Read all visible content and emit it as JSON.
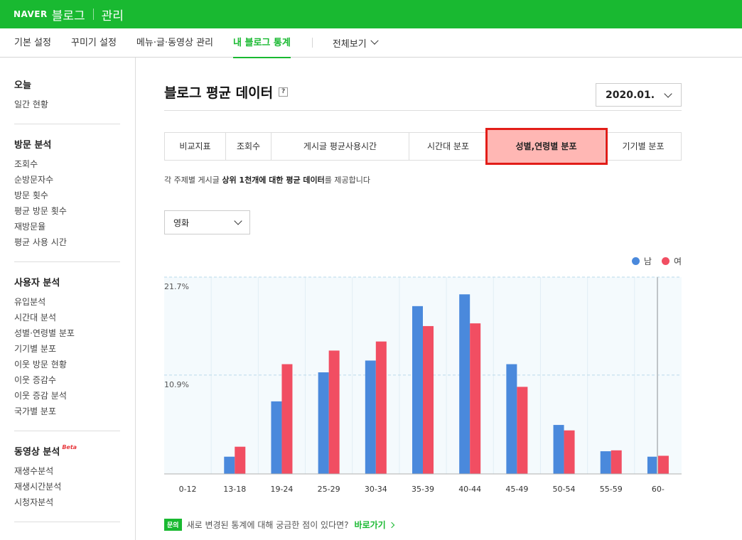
{
  "header": {
    "brand": "NAVER",
    "service": "블로그",
    "section": "관리"
  },
  "nav": {
    "items": [
      {
        "label": "기본 설정"
      },
      {
        "label": "꾸미기 설정"
      },
      {
        "label": "메뉴·글·동영상 관리"
      },
      {
        "label": "내 블로그 통계",
        "active": true
      }
    ],
    "all_label": "전체보기"
  },
  "sidebar": {
    "groups": [
      {
        "title": "오늘",
        "items": [
          "일간 현황"
        ]
      },
      {
        "title": "방문 분석",
        "items": [
          "조회수",
          "순방문자수",
          "방문 횟수",
          "평균 방문 횟수",
          "재방문율",
          "평균 사용 시간"
        ]
      },
      {
        "title": "사용자 분석",
        "items": [
          "유입분석",
          "시간대 분석",
          "성별·연령별 분포",
          "기기별 분포",
          "이웃 방문 현황",
          "이웃 증감수",
          "이웃 증감 분석",
          "국가별 분포"
        ]
      },
      {
        "title": "동영상 분석",
        "badge": "Beta",
        "items": [
          "재생수분석",
          "재생시간분석",
          "시청자분석"
        ]
      }
    ]
  },
  "main": {
    "title": "블로그 평균 데이터",
    "help": "?",
    "date": "2020.01.",
    "tabs": [
      {
        "label": "비교지표"
      },
      {
        "label": "조회수"
      },
      {
        "label": "게시글 평균사용시간"
      },
      {
        "label": "시간대 분포"
      },
      {
        "label": "성별,연령별 분포",
        "active": true
      },
      {
        "label": "기기별 분포"
      }
    ],
    "desc_pre": "각 주제별 게시글 ",
    "desc_bold": "상위 1천개에 대한 평균 데이터",
    "desc_post": "를 제공합니다",
    "category": "영화",
    "footer": {
      "badge": "문의",
      "text": "새로 변경된 통계에 대해 궁금한 점이 있다면?",
      "link": "바로가기"
    }
  },
  "chart_data": {
    "type": "bar",
    "categories": [
      "0-12",
      "13-18",
      "19-24",
      "25-29",
      "30-34",
      "35-39",
      "40-44",
      "45-49",
      "50-54",
      "55-59",
      "60-"
    ],
    "series": [
      {
        "name": "남",
        "color": "#4a89dc",
        "values": [
          0,
          1.9,
          8.0,
          11.2,
          12.5,
          18.5,
          19.8,
          12.1,
          5.4,
          2.5,
          1.9
        ]
      },
      {
        "name": "여",
        "color": "#f14e62",
        "values": [
          0,
          3.0,
          12.1,
          13.6,
          14.6,
          16.3,
          16.6,
          9.6,
          4.8,
          2.6,
          2.0
        ]
      }
    ],
    "y_ticks": [
      {
        "value": 21.7,
        "label": "21.7%"
      },
      {
        "value": 10.9,
        "label": "10.9%"
      }
    ],
    "ylim": [
      0,
      21.7
    ],
    "legend": "top-right",
    "grid": true
  }
}
